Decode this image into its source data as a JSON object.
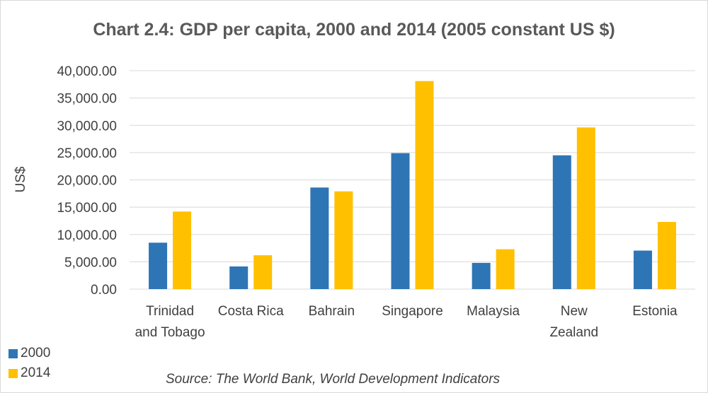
{
  "chart_data": {
    "type": "bar",
    "title": "Chart 2.4: GDP per capita, 2000 and 2014 (2005 constant US $)",
    "ylabel": "US$",
    "xlabel": "",
    "source": "Source: The World Bank, World Development Indicators",
    "categories": [
      [
        "Trinidad",
        "and Tobago"
      ],
      [
        "Costa Rica"
      ],
      [
        "Bahrain"
      ],
      [
        "Singapore"
      ],
      [
        "Malaysia"
      ],
      [
        "New",
        "Zealand"
      ],
      [
        "Estonia"
      ]
    ],
    "series": [
      {
        "name": "2000",
        "color": "#2e75b6",
        "values": [
          8500,
          4150,
          18600,
          24900,
          4800,
          24500,
          7050
        ]
      },
      {
        "name": "2014",
        "color": "#ffc000",
        "values": [
          14200,
          6200,
          17900,
          38100,
          7300,
          29600,
          12300
        ]
      }
    ],
    "ylim": [
      0,
      40000
    ],
    "yticks": [
      "0.00",
      "5,000.00",
      "10,000.00",
      "15,000.00",
      "20,000.00",
      "25,000.00",
      "30,000.00",
      "35,000.00",
      "40,000.00"
    ],
    "grid": true,
    "legend": "bottom-left"
  }
}
